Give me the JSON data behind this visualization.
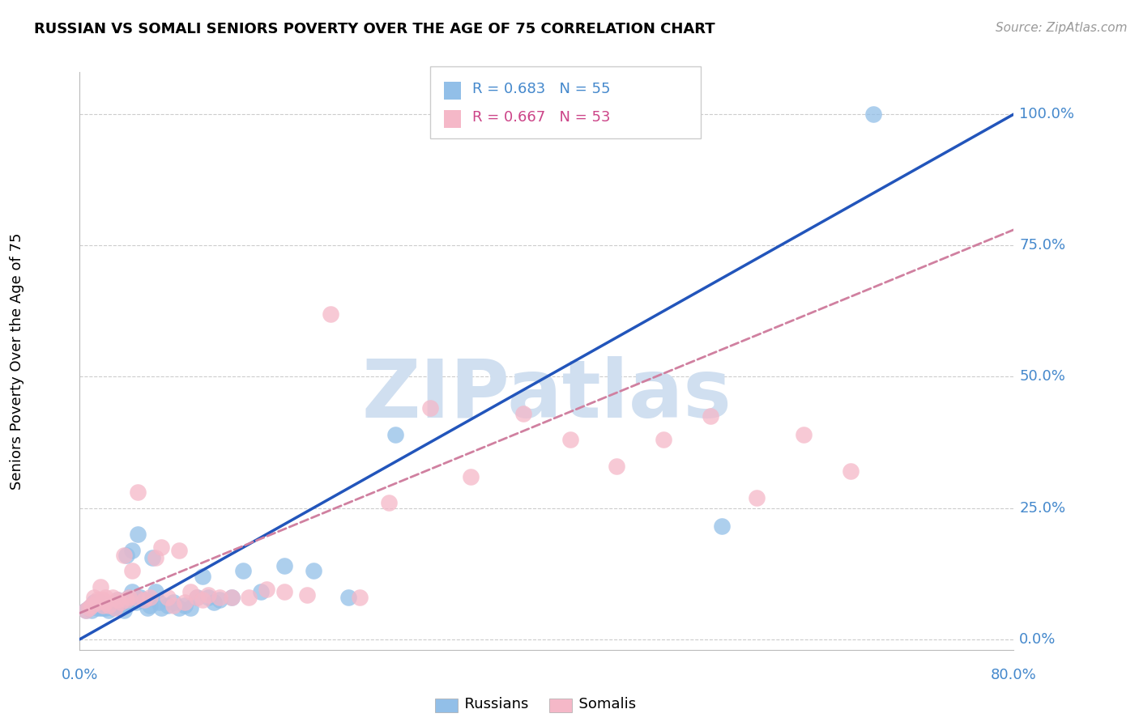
{
  "title": "RUSSIAN VS SOMALI SENIORS POVERTY OVER THE AGE OF 75 CORRELATION CHART",
  "source": "Source: ZipAtlas.com",
  "ylabel": "Seniors Poverty Over the Age of 75",
  "ytick_labels": [
    "0.0%",
    "25.0%",
    "50.0%",
    "75.0%",
    "100.0%"
  ],
  "ytick_values": [
    0.0,
    0.25,
    0.5,
    0.75,
    1.0
  ],
  "xlim": [
    0.0,
    0.8
  ],
  "ylim": [
    -0.02,
    1.08
  ],
  "russian_R": 0.683,
  "russian_N": 55,
  "somali_R": 0.667,
  "somali_N": 53,
  "russian_color": "#92bfe8",
  "somali_color": "#f5b8c8",
  "russian_line_color": "#2255bb",
  "somali_line_color": "#d080a0",
  "watermark_color": "#d0dff0",
  "russian_line": [
    0.0,
    0.0,
    0.8,
    1.0
  ],
  "somali_line": [
    0.0,
    0.05,
    0.8,
    0.78
  ],
  "russian_x": [
    0.005,
    0.008,
    0.01,
    0.012,
    0.015,
    0.015,
    0.018,
    0.018,
    0.02,
    0.02,
    0.022,
    0.022,
    0.025,
    0.025,
    0.028,
    0.03,
    0.03,
    0.032,
    0.035,
    0.035,
    0.038,
    0.04,
    0.04,
    0.042,
    0.045,
    0.045,
    0.048,
    0.05,
    0.052,
    0.055,
    0.058,
    0.06,
    0.062,
    0.065,
    0.068,
    0.07,
    0.075,
    0.08,
    0.085,
    0.09,
    0.095,
    0.1,
    0.105,
    0.11,
    0.115,
    0.12,
    0.13,
    0.14,
    0.155,
    0.175,
    0.2,
    0.23,
    0.27,
    0.55,
    0.68
  ],
  "russian_y": [
    0.055,
    0.06,
    0.055,
    0.07,
    0.065,
    0.06,
    0.06,
    0.07,
    0.065,
    0.06,
    0.06,
    0.065,
    0.065,
    0.055,
    0.06,
    0.065,
    0.07,
    0.075,
    0.07,
    0.06,
    0.055,
    0.065,
    0.16,
    0.08,
    0.17,
    0.09,
    0.07,
    0.2,
    0.08,
    0.075,
    0.06,
    0.065,
    0.155,
    0.09,
    0.07,
    0.06,
    0.065,
    0.07,
    0.06,
    0.065,
    0.06,
    0.08,
    0.12,
    0.08,
    0.07,
    0.075,
    0.08,
    0.13,
    0.09,
    0.14,
    0.13,
    0.08,
    0.39,
    0.215,
    1.0
  ],
  "somali_x": [
    0.005,
    0.008,
    0.01,
    0.012,
    0.015,
    0.015,
    0.018,
    0.02,
    0.02,
    0.022,
    0.022,
    0.025,
    0.028,
    0.03,
    0.032,
    0.035,
    0.038,
    0.04,
    0.042,
    0.045,
    0.048,
    0.05,
    0.055,
    0.06,
    0.065,
    0.07,
    0.075,
    0.08,
    0.085,
    0.09,
    0.095,
    0.1,
    0.105,
    0.11,
    0.12,
    0.13,
    0.145,
    0.16,
    0.175,
    0.195,
    0.215,
    0.24,
    0.265,
    0.3,
    0.335,
    0.38,
    0.42,
    0.46,
    0.5,
    0.54,
    0.58,
    0.62,
    0.66
  ],
  "somali_y": [
    0.055,
    0.06,
    0.065,
    0.08,
    0.07,
    0.075,
    0.1,
    0.065,
    0.075,
    0.07,
    0.08,
    0.065,
    0.08,
    0.06,
    0.075,
    0.07,
    0.16,
    0.075,
    0.08,
    0.13,
    0.08,
    0.28,
    0.075,
    0.08,
    0.155,
    0.175,
    0.08,
    0.065,
    0.17,
    0.07,
    0.09,
    0.08,
    0.075,
    0.085,
    0.08,
    0.08,
    0.08,
    0.095,
    0.09,
    0.085,
    0.62,
    0.08,
    0.26,
    0.44,
    0.31,
    0.43,
    0.38,
    0.33,
    0.38,
    0.425,
    0.27,
    0.39,
    0.32
  ]
}
